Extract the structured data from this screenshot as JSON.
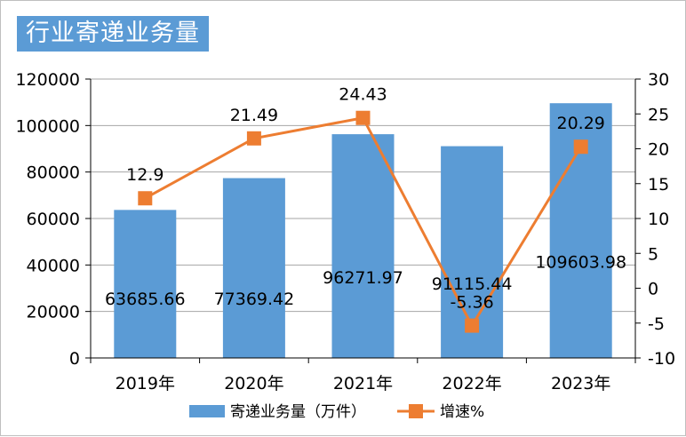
{
  "title": "行业寄递业务量",
  "colors": {
    "bar": "#5b9bd5",
    "line": "#ed7d31",
    "title_bg": "#5b9bd5",
    "grid": "#a6a6a6"
  },
  "chart_data": {
    "type": "bar",
    "categories": [
      "2019年",
      "2020年",
      "2021年",
      "2022年",
      "2023年"
    ],
    "series": [
      {
        "name": "寄递业务量（万件）",
        "type": "bar",
        "axis": "left",
        "values": [
          63685.66,
          77369.42,
          96271.97,
          91115.44,
          109603.98
        ],
        "labels": [
          "63685.66",
          "77369.42",
          "96271.97",
          "91115.44",
          "109603.98"
        ]
      },
      {
        "name": "增速%",
        "type": "line",
        "axis": "right",
        "values": [
          12.9,
          21.49,
          24.43,
          -5.36,
          20.29
        ],
        "labels": [
          "12.9",
          "21.49",
          "24.43",
          "-5.36",
          "20.29"
        ]
      }
    ],
    "y_left": {
      "min": 0,
      "max": 120000,
      "ticks": [
        "0",
        "20000",
        "40000",
        "60000",
        "80000",
        "100000",
        "120000"
      ]
    },
    "y_right": {
      "min": -10,
      "max": 30,
      "ticks": [
        "-10",
        "-5",
        "0",
        "5",
        "10",
        "15",
        "20",
        "25",
        "30"
      ]
    },
    "grid": true,
    "legend_position": "bottom"
  }
}
